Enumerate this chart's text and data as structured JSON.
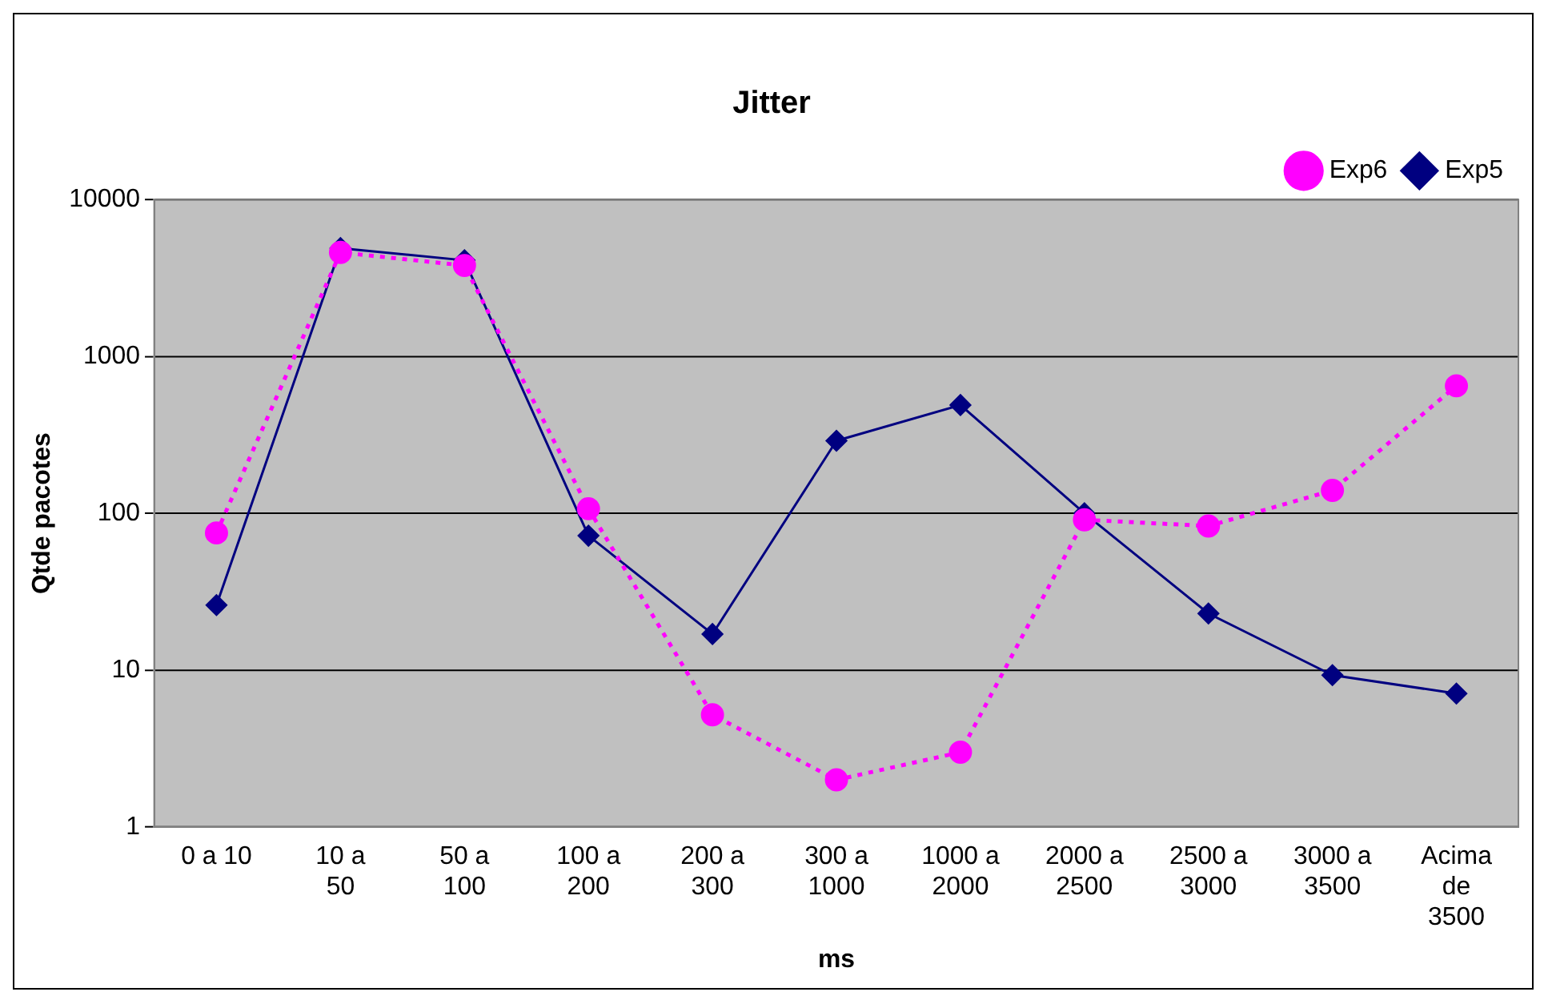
{
  "chart_data": {
    "type": "line",
    "title": "Jitter",
    "xlabel": "ms",
    "ylabel": "Qtde pacotes",
    "categories": [
      "0 a 10",
      "10 a 50",
      "50 a 100",
      "100 a 200",
      "200 a 300",
      "300 a 1000",
      "1000 a 2000",
      "2000 a 2500",
      "2500 a 3000",
      "3000 a 3500",
      "Acima de 3500"
    ],
    "series": [
      {
        "name": "Exp5",
        "color": "#000080",
        "marker": "diamond",
        "line_style": "solid",
        "values": [
          26,
          4900,
          4100,
          72,
          17,
          290,
          490,
          100,
          23,
          9.3,
          7.1
        ]
      },
      {
        "name": "Exp6",
        "color": "#ff00ff",
        "marker": "circle",
        "line_style": "dotted",
        "values": [
          75,
          4600,
          3800,
          107,
          5.2,
          2,
          3,
          91,
          83,
          140,
          650
        ]
      }
    ],
    "log": "y",
    "ylim": [
      1,
      10000
    ],
    "yticks": [
      1,
      10,
      100,
      1000,
      10000
    ],
    "grid": "y",
    "legend": "top right"
  }
}
